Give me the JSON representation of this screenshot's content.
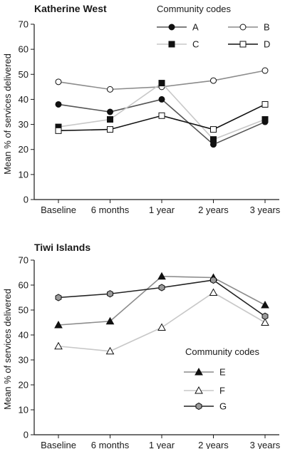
{
  "chart_data": [
    {
      "type": "line",
      "title": "Katherine West",
      "ylabel": "Mean % of services delivered",
      "xlabel": "",
      "categories": [
        "Baseline",
        "6 months",
        "1 year",
        "2 years",
        "3 years"
      ],
      "ylim": [
        0,
        70
      ],
      "yticks": [
        0,
        10,
        20,
        30,
        40,
        50,
        60,
        70
      ],
      "grid": false,
      "legend_title": "Community codes",
      "legend_placement": "top-right",
      "series": [
        {
          "name": "A",
          "values": [
            38,
            35,
            40,
            22,
            31
          ],
          "color": "#555555",
          "marker": "circle",
          "fill": "#111111"
        },
        {
          "name": "B",
          "values": [
            47,
            44,
            45,
            47.5,
            51.5
          ],
          "color": "#8c8c8c",
          "marker": "circle",
          "fill": "#ffffff"
        },
        {
          "name": "C",
          "values": [
            29,
            32,
            46.5,
            24,
            32
          ],
          "color": "#c8c8c8",
          "marker": "square",
          "fill": "#111111"
        },
        {
          "name": "D",
          "values": [
            27.5,
            28,
            33.5,
            28,
            38
          ],
          "color": "#111111",
          "marker": "square",
          "fill": "#ffffff"
        }
      ]
    },
    {
      "type": "line",
      "title": "Tiwi Islands",
      "ylabel": "Mean % of services delivered",
      "xlabel": "",
      "categories": [
        "Baseline",
        "6 months",
        "1 year",
        "2 years",
        "3 years"
      ],
      "ylim": [
        0,
        70
      ],
      "yticks": [
        0,
        10,
        20,
        30,
        40,
        50,
        60,
        70
      ],
      "grid": false,
      "legend_title": "Community codes",
      "legend_placement": "bottom-right",
      "series": [
        {
          "name": "E",
          "values": [
            44,
            45.5,
            63.5,
            63,
            52
          ],
          "color": "#8c8c8c",
          "marker": "triangle",
          "fill": "#111111"
        },
        {
          "name": "F",
          "values": [
            35.5,
            33.5,
            43,
            57,
            45
          ],
          "color": "#c8c8c8",
          "marker": "triangle",
          "fill": "#ffffff"
        },
        {
          "name": "G",
          "values": [
            55,
            56.5,
            59,
            62,
            47.5
          ],
          "color": "#222222",
          "marker": "hexagon",
          "fill": "#9a9a9a"
        }
      ]
    }
  ]
}
